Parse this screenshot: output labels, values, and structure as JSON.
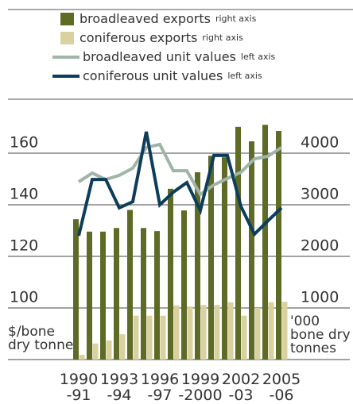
{
  "chart_data": {
    "type": "bar_line",
    "categories": [
      "1990\n-91",
      null,
      null,
      "1993\n-94",
      null,
      null,
      "1996\n-97",
      null,
      null,
      "1999\n-2000",
      null,
      null,
      "2002\n-03",
      null,
      null,
      "2005\n-06"
    ],
    "series": [
      {
        "name": "broadleaved exports",
        "axis_note": "right axis",
        "type": "bar",
        "axis": "y2",
        "color": "#5e6b26",
        "values": [
          2720,
          2480,
          2480,
          2550,
          2900,
          2550,
          2490,
          3310,
          2890,
          3630,
          3950,
          3920,
          4510,
          4230,
          4550,
          4430
        ]
      },
      {
        "name": "coniferous exports",
        "axis_note": "right axis",
        "type": "bar",
        "axis": "y2",
        "color": "#d9d2a0",
        "values": [
          90,
          310,
          370,
          490,
          850,
          850,
          850,
          1050,
          1030,
          1060,
          1060,
          1110,
          850,
          1000,
          1110,
          1120
        ]
      },
      {
        "name": "broadleaved unit values",
        "axis_note": "left axis",
        "type": "line",
        "color": "#9fb5a8",
        "values": [
          148.9,
          152.3,
          149.8,
          151.4,
          154.2,
          162.2,
          163.4,
          153.2,
          153.2,
          144,
          147.7,
          150.2,
          152.6,
          157.8,
          158.8,
          162.2
        ]
      },
      {
        "name": "coniferous unit values",
        "axis_note": "left axis",
        "type": "line",
        "color": "#0d3d5c",
        "values": [
          128,
          149.8,
          149.8,
          138.8,
          141.2,
          168.3,
          140,
          144.9,
          148.6,
          137.8,
          159.1,
          159.1,
          139.4,
          128.6,
          133.8,
          138.8
        ]
      }
    ],
    "y_label": "$/bone\ndry tonne",
    "y2_label": "'000\nbone dry\ntonnes",
    "ylim": [
      80,
      172
    ],
    "yticks": [
      100,
      120,
      140,
      160
    ],
    "y2lim": [
      0,
      4600
    ],
    "y2ticks": [
      1000,
      2000,
      3000,
      4000
    ],
    "grid": true
  }
}
